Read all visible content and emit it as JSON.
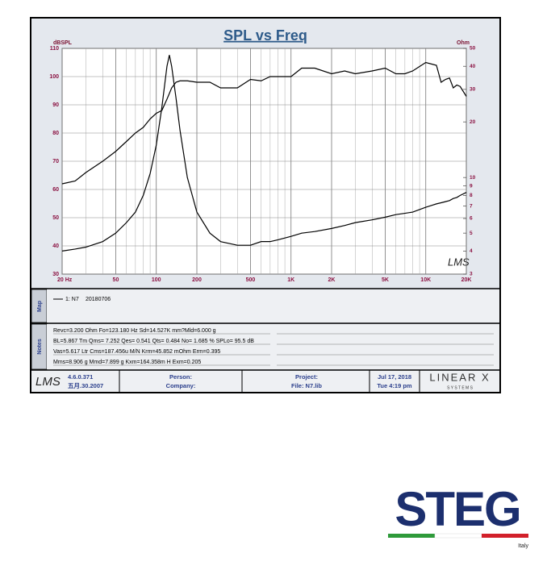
{
  "chart_data": {
    "type": "line",
    "title": "SPL vs Freq",
    "y_label": "dBSPL",
    "y2_label": "Ohm",
    "watermark": "LMS",
    "log_x": true,
    "log_y2": true,
    "grid": true,
    "x": [
      20,
      25,
      30,
      40,
      50,
      60,
      70,
      80,
      90,
      100,
      110,
      120,
      125,
      130,
      140,
      150,
      170,
      200,
      250,
      300,
      400,
      500,
      600,
      700,
      800,
      1000,
      1200,
      1500,
      2000,
      2500,
      3000,
      4000,
      5000,
      6000,
      7000,
      8000,
      10000,
      12000,
      13000,
      14000,
      15000,
      16000,
      17000,
      18000,
      20000
    ],
    "series": [
      {
        "color": "#000000",
        "values": [
          62,
          63,
          66,
          70,
          73.5,
          77,
          80,
          82,
          85,
          87,
          88,
          92,
          94,
          96,
          98,
          98.5,
          98.5,
          98,
          98,
          96,
          96,
          99,
          98.5,
          100,
          100,
          100,
          103,
          103,
          101,
          102,
          101,
          102,
          103,
          101,
          101,
          102,
          105,
          104,
          98,
          99,
          99.5,
          96,
          97,
          96.5,
          93
        ]
      },
      {
        "color": "#000000",
        "axis": "y2",
        "values": [
          4.0,
          4.1,
          4.2,
          4.5,
          5.0,
          5.7,
          6.5,
          8,
          10.5,
          15,
          24,
          40,
          46,
          40,
          27,
          18,
          10,
          6.5,
          5,
          4.5,
          4.3,
          4.3,
          4.5,
          4.5,
          4.6,
          4.8,
          5.0,
          5.1,
          5.3,
          5.5,
          5.7,
          5.9,
          6.1,
          6.3,
          6.4,
          6.5,
          6.9,
          7.2,
          7.3,
          7.4,
          7.5,
          7.7,
          7.8,
          8.0,
          8.3
        ]
      }
    ],
    "xlim": [
      20,
      20000
    ],
    "xticks": [
      {
        "value": 20,
        "label": "20  Hz"
      },
      50,
      100,
      200,
      500,
      {
        "value": 1000,
        "label": "1K"
      },
      {
        "value": 2000,
        "label": "2K"
      },
      {
        "value": 5000,
        "label": "5K"
      },
      {
        "value": 10000,
        "label": "10K"
      },
      {
        "value": 20000,
        "label": "20K"
      }
    ],
    "xminor": [
      30,
      40,
      60,
      70,
      80,
      90,
      300,
      400,
      600,
      700,
      800,
      900,
      3000,
      4000,
      6000,
      7000,
      8000,
      9000
    ],
    "ylim": [
      30,
      110
    ],
    "yticks": [
      30,
      40,
      50,
      60,
      70,
      80,
      90,
      100,
      110
    ],
    "y2lim": [
      3,
      50
    ],
    "y2ticks": [
      3,
      4,
      5,
      6,
      7,
      8,
      9,
      10,
      20,
      30,
      40,
      50
    ]
  },
  "map": {
    "label": "Map",
    "entry": "1: N7",
    "date": "20180706"
  },
  "notes": {
    "label": "Notes",
    "lines": [
      "Revc=3.200 Ohm  Fo=123.180 Hz  Sd=14.527K mm?Mld=6.000 g",
      "BL=5.867 Tm  Qms= 7.252  Qes= 0.541  Qts= 0.484  No= 1.685 %  SPLo= 95.5 dB",
      "Vas=5.617 Ltr  Cms=187.456u M/N  Krm=45.852 mOhm  Erm=0.395",
      "Mms=8.906 g  Mmd=7.899 g  Kxm=164.358m H  Exm=0.205"
    ]
  },
  "footer": {
    "logo": "LMS",
    "version": "4.6.0.371",
    "build_date": "五月.30.2007",
    "person": "Person:",
    "company": "Company:",
    "project": "Project:",
    "file": "File: N7.lib",
    "date": "Jul 17, 2018",
    "time": "Tue  4:19 pm",
    "brand": "LINEAR X",
    "brand_sub": "S Y S T E M S"
  },
  "brand": {
    "name": "STEG",
    "country": "Italy"
  }
}
